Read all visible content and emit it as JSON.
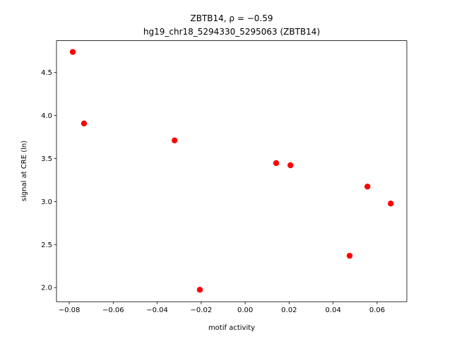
{
  "chart_data": {
    "type": "scatter",
    "title": "ZBTB14, ρ = −0.59",
    "subtitle": "hg19_chr18_5294330_5295063 (ZBTB14)",
    "x_label": "motif activity",
    "y_label": "signal at CRE (ln)",
    "color": "#ff0000",
    "x": [
      -0.0784,
      -0.0733,
      -0.0321,
      -0.0206,
      0.0141,
      0.0206,
      0.0475,
      0.0556,
      0.0662
    ],
    "y": [
      4.739,
      3.908,
      3.711,
      1.975,
      3.447,
      3.422,
      2.37,
      3.174,
      2.977
    ],
    "xlim": [
      -0.0858,
      0.0735
    ],
    "ylim": [
      1.836,
      4.87
    ],
    "xticks": [
      {
        "value": -0.08,
        "label": "−0.08"
      },
      {
        "value": -0.06,
        "label": "−0.06"
      },
      {
        "value": -0.04,
        "label": "−0.04"
      },
      {
        "value": -0.02,
        "label": "−0.02"
      },
      {
        "value": 0,
        "label": "0.00"
      },
      0.02,
      0.04,
      0.06
    ],
    "yticks": [
      {
        "value": 2,
        "label": "2.0"
      },
      2.5,
      {
        "value": 3,
        "label": "3.0"
      },
      3.5,
      {
        "value": 4,
        "label": "4.0"
      },
      4.5
    ]
  }
}
